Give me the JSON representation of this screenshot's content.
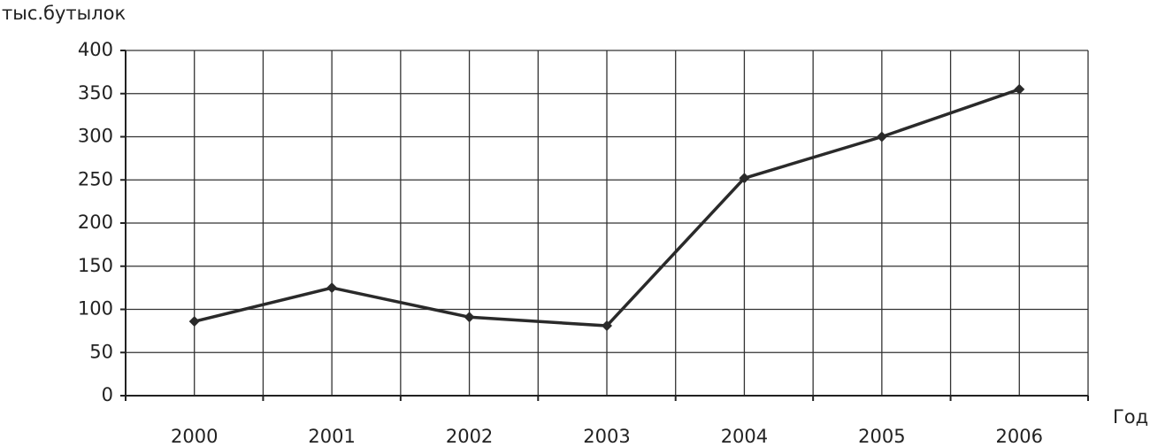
{
  "chart_data": {
    "type": "line",
    "y_label": "тыс.бутылок",
    "x_label": "Год",
    "categories": [
      "2000",
      "2001",
      "2002",
      "2003",
      "2004",
      "2005",
      "2006"
    ],
    "values": [
      86,
      125,
      91,
      81,
      252,
      300,
      355
    ],
    "color": "#2a2a2a",
    "ylim": [
      0,
      400
    ],
    "yticks": [
      0,
      50,
      100,
      150,
      200,
      250,
      300,
      350,
      400
    ],
    "grid": true
  }
}
